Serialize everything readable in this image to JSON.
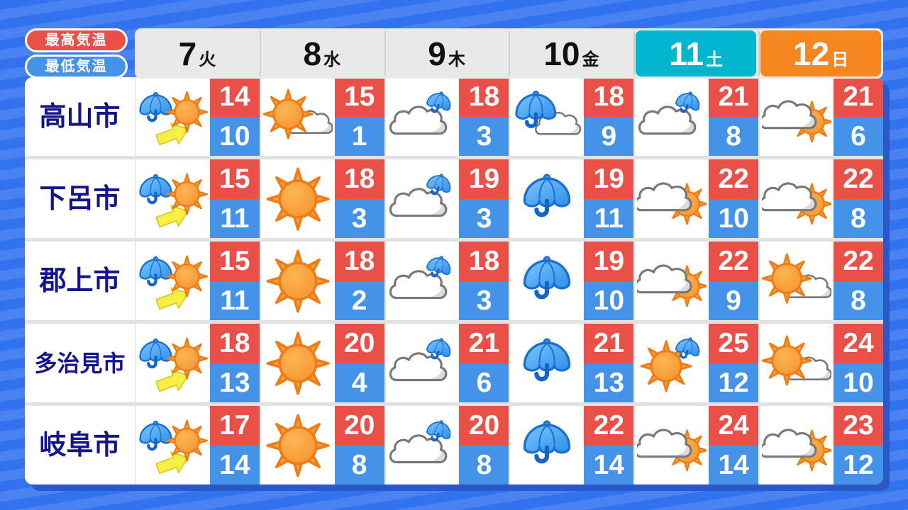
{
  "legend": {
    "high_label": "最高気温",
    "low_label": "最低気温"
  },
  "colors": {
    "high_bg": "#e95148",
    "low_bg": "#4493e9",
    "saturday_bg": "#00b5ce",
    "sunday_bg": "#f6861f",
    "city_text": "#14148c",
    "background_dark": "#3173ef",
    "background_light": "#4a82f2",
    "panel_shadow": "#2a58c8"
  },
  "icon_legend": {
    "sun": "sunny",
    "umbrella": "rain",
    "rain-then-sun": "rain then sunny",
    "sun-then-cloud": "sunny then cloudy",
    "cloud-then-sun": "cloudy then sunny",
    "cloud-with-umbrella": "cloudy with occasional rain",
    "umbrella-with-cloud": "rain with clouds",
    "sun-with-umbrella": "sunny with occasional rain"
  },
  "chart_data": {
    "type": "table",
    "columns": [
      {
        "number": "7",
        "weekday": "火",
        "variant": "plain"
      },
      {
        "number": "8",
        "weekday": "水",
        "variant": "plain"
      },
      {
        "number": "9",
        "weekday": "木",
        "variant": "plain"
      },
      {
        "number": "10",
        "weekday": "金",
        "variant": "plain"
      },
      {
        "number": "11",
        "weekday": "土",
        "variant": "saturday"
      },
      {
        "number": "12",
        "weekday": "日",
        "variant": "sunday"
      }
    ],
    "rows": [
      {
        "city": "高山市",
        "cells": [
          {
            "icon": "rain-then-sun",
            "high": "14",
            "low": "10"
          },
          {
            "icon": "sun-then-cloud",
            "high": "15",
            "low": "1"
          },
          {
            "icon": "cloud-with-umbrella",
            "high": "18",
            "low": "3"
          },
          {
            "icon": "umbrella-with-cloud",
            "high": "18",
            "low": "9"
          },
          {
            "icon": "cloud-with-umbrella",
            "high": "21",
            "low": "8"
          },
          {
            "icon": "cloud-then-sun",
            "high": "21",
            "low": "6"
          }
        ]
      },
      {
        "city": "下呂市",
        "cells": [
          {
            "icon": "rain-then-sun",
            "high": "15",
            "low": "11"
          },
          {
            "icon": "sun",
            "high": "18",
            "low": "3"
          },
          {
            "icon": "cloud-with-umbrella",
            "high": "19",
            "low": "3"
          },
          {
            "icon": "umbrella",
            "high": "19",
            "low": "11"
          },
          {
            "icon": "cloud-then-sun",
            "high": "22",
            "low": "10"
          },
          {
            "icon": "cloud-then-sun",
            "high": "22",
            "low": "8"
          }
        ]
      },
      {
        "city": "郡上市",
        "cells": [
          {
            "icon": "rain-then-sun",
            "high": "15",
            "low": "11"
          },
          {
            "icon": "sun",
            "high": "18",
            "low": "2"
          },
          {
            "icon": "cloud-with-umbrella",
            "high": "18",
            "low": "3"
          },
          {
            "icon": "umbrella",
            "high": "19",
            "low": "10"
          },
          {
            "icon": "cloud-then-sun",
            "high": "22",
            "low": "9"
          },
          {
            "icon": "sun-then-cloud",
            "high": "22",
            "low": "8"
          }
        ]
      },
      {
        "city": "多治見市",
        "cells": [
          {
            "icon": "rain-then-sun",
            "high": "18",
            "low": "13"
          },
          {
            "icon": "sun",
            "high": "20",
            "low": "4"
          },
          {
            "icon": "cloud-with-umbrella",
            "high": "21",
            "low": "6"
          },
          {
            "icon": "umbrella",
            "high": "21",
            "low": "13"
          },
          {
            "icon": "sun-with-umbrella",
            "high": "25",
            "low": "12"
          },
          {
            "icon": "sun-then-cloud",
            "high": "24",
            "low": "10"
          }
        ]
      },
      {
        "city": "岐阜市",
        "cells": [
          {
            "icon": "rain-then-sun",
            "high": "17",
            "low": "14"
          },
          {
            "icon": "sun",
            "high": "20",
            "low": "8"
          },
          {
            "icon": "cloud-with-umbrella",
            "high": "20",
            "low": "8"
          },
          {
            "icon": "umbrella",
            "high": "22",
            "low": "14"
          },
          {
            "icon": "cloud-then-sun",
            "high": "24",
            "low": "14"
          },
          {
            "icon": "cloud-then-sun",
            "high": "23",
            "low": "12"
          }
        ]
      }
    ]
  }
}
